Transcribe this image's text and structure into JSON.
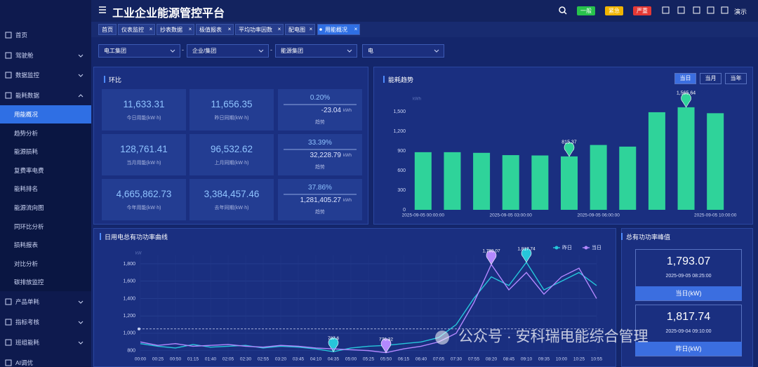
{
  "header": {
    "title": "工业企业能源管控平台",
    "alarms": [
      "一般",
      "紧急",
      "严重"
    ],
    "user": "演示"
  },
  "menu": [
    "首页",
    "驾驶舱",
    "数据监控",
    "能耗数据"
  ],
  "submenu": [
    "用能概况",
    "趋势分析",
    "能源损耗",
    "复费率电费",
    "能耗排名",
    "能源流向图",
    "同环比分析",
    "损耗报表",
    "对比分析",
    "碳排放监控"
  ],
  "menu_after": [
    "产品单耗",
    "指标考核",
    "班组能耗",
    "AI调优"
  ],
  "tabs": [
    "首页",
    "仪表监控",
    "抄表数据",
    "极值报表",
    "平均功率因数",
    "配电图",
    "用能概况"
  ],
  "filters": {
    "selects": [
      "电工集团",
      "企业/集团",
      "能源集团",
      "电"
    ],
    "separators": [
      "-",
      "-"
    ]
  },
  "ratio_panel": {
    "title": "环比",
    "rows": [
      {
        "current": "11,633.31",
        "current_label": "今日用能(kW·h)",
        "previous": "11,656.35",
        "previous_label": "昨日同期(kW·h)",
        "rate": "0.20%",
        "diff": "-23.04",
        "diff_unit": "kWh",
        "trend": "趋势"
      },
      {
        "current": "128,761.41",
        "current_label": "当月用能(kW·h)",
        "previous": "96,532.62",
        "previous_label": "上月同期(kW·h)",
        "rate": "33.39%",
        "diff": "32,228.79",
        "diff_unit": "kWh",
        "trend": "趋势"
      },
      {
        "current": "4,665,862.73",
        "current_label": "今年用能(kW·h)",
        "previous": "3,384,457.46",
        "previous_label": "去年同期(kW·h)",
        "rate": "37.86%",
        "diff": "1,281,405.27",
        "diff_unit": "kWh",
        "trend": "趋势"
      }
    ]
  },
  "peak_panel": {
    "title": "总有功功率峰值",
    "cards": [
      {
        "value": "1,793.07",
        "time": "2025-09-05 08:25:00",
        "label": "当日(kW)"
      },
      {
        "value": "1,817.74",
        "time": "2025-09-04 09:10:00",
        "label": "昨日(kW)"
      }
    ]
  },
  "watermark": "公众号 · 安科瑞电能综合管理",
  "chart_data": [
    {
      "type": "bar",
      "title": "能耗趋势",
      "y_label": "kWh",
      "buttons": [
        "当日",
        "当月",
        "当年"
      ],
      "categories": [
        "2025-09-05 00:00:00",
        null,
        null,
        "2025-09-05 03:00:00",
        null,
        null,
        "2025-09-05 06:00:00",
        null,
        null,
        null,
        "2025-09-05 10:00:00"
      ],
      "values": [
        880,
        880,
        870,
        835,
        830,
        815.37,
        990,
        965,
        1490,
        1565.64,
        1475
      ],
      "value_labels": [
        null,
        null,
        null,
        null,
        null,
        "815.37",
        null,
        null,
        null,
        "1,565.64",
        null
      ],
      "color": "#2fd39a",
      "ylim": [
        0,
        1800
      ],
      "yticks": [
        0,
        300,
        600,
        900,
        {
          "value": 1200,
          "label": "1,200"
        },
        {
          "value": 1500,
          "label": "1,500"
        }
      ],
      "grid": false
    },
    {
      "type": "line",
      "title": "日用电总有功功率曲线",
      "y_label": "kW",
      "categories": [
        "00:00",
        "00:25",
        "00:50",
        "01:15",
        "01:40",
        "02:05",
        "02:30",
        "02:55",
        "03:20",
        "03:45",
        "04:10",
        "04:35",
        "05:00",
        "05:25",
        "05:50",
        "06:15",
        "06:40",
        "07:05",
        "07:30",
        "07:55",
        "08:20",
        "08:45",
        "09:10",
        "09:35",
        "10:00",
        "10:25",
        "10:55"
      ],
      "series": [
        {
          "name": "昨日",
          "color": "#26c6da",
          "values": [
            880,
            850,
            830,
            870,
            840,
            850,
            860,
            830,
            850,
            840,
            820,
            787.6,
            830,
            850,
            860,
            880,
            900,
            950,
            1100,
            1400,
            1650,
            1550,
            1817.74,
            1500,
            1600,
            1700,
            1550
          ],
          "value_labels": [
            null,
            null,
            null,
            null,
            null,
            null,
            null,
            null,
            null,
            null,
            null,
            "787.6",
            null,
            null,
            null,
            null,
            null,
            null,
            null,
            null,
            null,
            null,
            "1,817.74",
            null,
            null,
            null,
            null
          ]
        },
        {
          "name": "当日",
          "color": "#b388ff",
          "values": [
            900,
            860,
            880,
            850,
            860,
            870,
            850,
            840,
            860,
            850,
            830,
            820,
            810,
            800,
            776.32,
            820,
            850,
            900,
            1000,
            1350,
            1793.07,
            1500,
            1700,
            1450,
            1650,
            1750,
            1400
          ],
          "value_labels": [
            null,
            null,
            null,
            null,
            null,
            null,
            null,
            null,
            null,
            null,
            null,
            null,
            null,
            null,
            "776.32",
            null,
            null,
            null,
            null,
            null,
            "1,793.07",
            null,
            null,
            null,
            null,
            null,
            null
          ]
        }
      ],
      "ylim": [
        700,
        1900
      ],
      "yticks": [
        800,
        {
          "value": 1000,
          "label": "1,000"
        },
        {
          "value": 1200,
          "label": "1,200"
        },
        {
          "value": 1400,
          "label": "1,400"
        },
        {
          "value": 1600,
          "label": "1,600"
        },
        {
          "value": 1800,
          "label": "1,800"
        }
      ],
      "grid": true,
      "legend": "top-right",
      "ref_line": 1050
    }
  ]
}
